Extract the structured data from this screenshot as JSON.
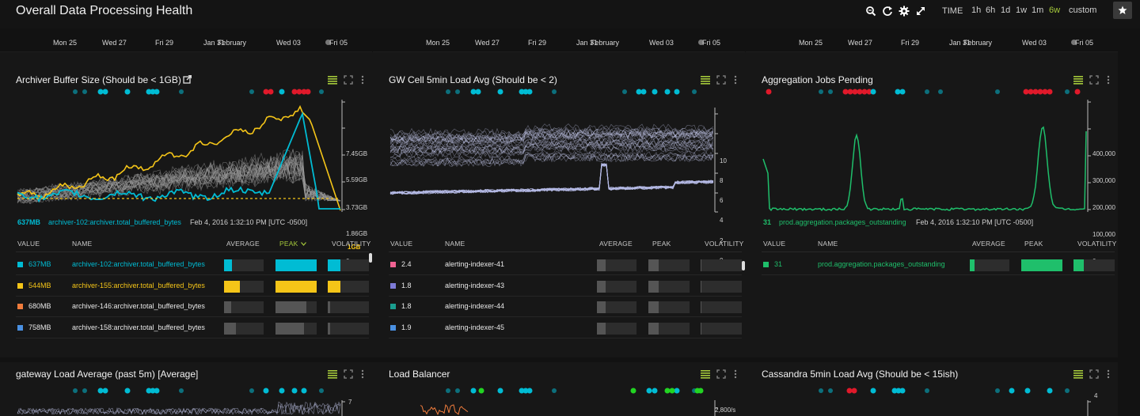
{
  "header": {
    "title": "Overall Data Processing Health",
    "time_label": "TIME",
    "ranges": [
      "1h",
      "6h",
      "1d",
      "1w",
      "1m",
      "6w",
      "custom"
    ],
    "active_range": "6w",
    "icons": [
      "zoom-icon",
      "refresh-icon",
      "gear-icon",
      "expand-icon",
      "star-icon"
    ]
  },
  "timeline": {
    "labels": [
      "Mon 25",
      "Wed 27",
      "Fri 29",
      "Jan 31",
      "February",
      "Wed 03",
      "Fri 05"
    ]
  },
  "colors": {
    "accent": "#a5c93b",
    "cyan": "#00bcd4",
    "yellow": "#f5c518",
    "green": "#1fbf6b",
    "orange": "#f07c3c",
    "red": "#e0192a",
    "lavender": "#b8bde8"
  },
  "table_headers": {
    "value": "VALUE",
    "name": "NAME",
    "average": "AVERAGE",
    "peak": "PEAK",
    "volatility": "VOLATILITY"
  },
  "panels": [
    {
      "title": "Archiver Buffer Size (Should be < 1GB)",
      "y_ticks": [
        "7.45GB",
        "5.59GB",
        "3.73GB",
        "1.86GB",
        "0"
      ],
      "threshold_label": "1GB",
      "legend": {
        "value": "637MB",
        "name": "archiver-102:archiver.total_buffered_bytes",
        "timestamp": "Feb 4, 2016 1:32:10 PM [UTC -0500]"
      },
      "sorted_column": "peak",
      "rows": [
        {
          "value": "637MB",
          "name": "archiver-102:archiver.total_buffered_bytes",
          "color": "#00bcd4",
          "avg": 0.2,
          "peak": 1.0,
          "vol": 0.3
        },
        {
          "value": "544MB",
          "name": "archiver-155:archiver.total_buffered_bytes",
          "color": "#f5c518",
          "avg": 0.4,
          "peak": 1.0,
          "vol": 0.3
        },
        {
          "value": "680MB",
          "name": "archiver-146:archiver.total_buffered_bytes",
          "color": "#f07c3c",
          "avg": 0.18,
          "peak": 0.75,
          "vol": 0.05
        },
        {
          "value": "758MB",
          "name": "archiver-158:archiver.total_buffered_bytes",
          "color": "#4a90e2",
          "avg": 0.3,
          "peak": 0.7,
          "vol": 0.05
        }
      ]
    },
    {
      "title": "GW Cell 5min Load Avg (Should be < 2)",
      "y_ticks": [
        "10",
        "8",
        "6",
        "4",
        "2",
        "0"
      ],
      "rows": [
        {
          "value": "2.4",
          "name": "alerting-indexer-41",
          "color": "#f06292",
          "avg": 0.22,
          "peak": 0.25,
          "vol": 0.02
        },
        {
          "value": "1.8",
          "name": "alerting-indexer-43",
          "color": "#7e7bd8",
          "avg": 0.22,
          "peak": 0.25,
          "vol": 0.02
        },
        {
          "value": "1.8",
          "name": "alerting-indexer-44",
          "color": "#1a9e8f",
          "avg": 0.22,
          "peak": 0.25,
          "vol": 0.02
        },
        {
          "value": "1.9",
          "name": "alerting-indexer-45",
          "color": "#4a90e2",
          "avg": 0.22,
          "peak": 0.25,
          "vol": 0.02
        }
      ]
    },
    {
      "title": "Aggregation Jobs Pending",
      "y_ticks": [
        "400,000",
        "300,000",
        "200,000",
        "100,000",
        "0"
      ],
      "legend": {
        "value": "31",
        "name": "prod.aggregation.packages_outstanding",
        "timestamp": "Feb 4, 2016 1:32:10 PM [UTC -0500]"
      },
      "rows": [
        {
          "value": "31",
          "name": "prod.aggregation.packages_outstanding",
          "color": "#1fbf6b",
          "avg": 0.12,
          "peak": 1.0,
          "vol": 0.25
        }
      ]
    }
  ],
  "bottom_panels": [
    {
      "title": "gateway Load Average (past 5m) [Average]",
      "y_tick": "7"
    },
    {
      "title": "Load Balancer",
      "y_tick": "2,800/s"
    },
    {
      "title": "Cassandra 5min Load Avg (Should be < 15ish)",
      "y_tick": "4"
    }
  ]
}
